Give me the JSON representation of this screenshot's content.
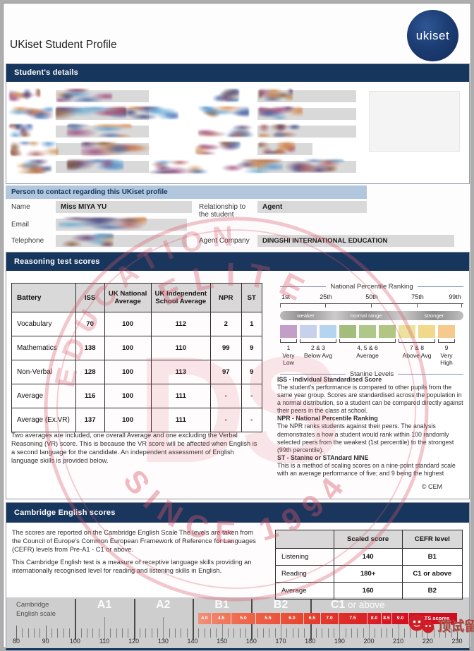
{
  "page": {
    "title": "UKiset Student Profile",
    "logo_text": "ukiset"
  },
  "student_details": {
    "header": "Student's details"
  },
  "contact": {
    "header": "Person to contact regarding this UKiset profile",
    "name_label": "Name",
    "name_value": "Miss MIYA YU",
    "email_label": "Email",
    "telephone_label": "Telephone",
    "relationship_label": "Relationship to the student",
    "relationship_value": "Agent",
    "agent_company_label": "Agent Company",
    "agent_company_value": "DINGSHI INTERNATIONAL EDUCATION"
  },
  "reasoning": {
    "header": "Reasoning test scores",
    "table": {
      "columns": [
        "Battery",
        "ISS",
        "UK National Average",
        "UK Independent School Average",
        "NPR",
        "ST"
      ],
      "rows": [
        [
          "Vocabulary",
          "70",
          "100",
          "112",
          "2",
          "1"
        ],
        [
          "Mathematics",
          "138",
          "100",
          "110",
          "99",
          "9"
        ],
        [
          "Non-Verbal",
          "128",
          "100",
          "113",
          "97",
          "9"
        ],
        [
          "Average",
          "116",
          "100",
          "111",
          "-",
          "-"
        ],
        [
          "Average (Ex.VR)",
          "137",
          "100",
          "111",
          "-",
          "-"
        ]
      ]
    },
    "averages_note": "Two averages are included, one overall Average and one excluding the Verbal Reasoning (VR) score. This is because the VR score will be affected when English is a second language for the candidate. An independent assessment of English language skills is provided below.",
    "diagram": {
      "title": "National Percentile Ranking",
      "percentile_labels": [
        "1st",
        "25th",
        "50th",
        "75th",
        "99th"
      ],
      "band_words": [
        "weaker",
        "normal range",
        "stronger"
      ],
      "stanine_colors": [
        "#c39fca",
        "#c7d3ed",
        "#b4d6f0",
        "#a3bf7d",
        "#afc98b",
        "#b0c883",
        "#ece49e",
        "#f0d98b",
        "#f6c98c"
      ],
      "groups": [
        {
          "num": "1",
          "label": "Very Low"
        },
        {
          "num": "2 & 3",
          "label": "Below Avg"
        },
        {
          "num": "4, 5 & 6",
          "label": "Average"
        },
        {
          "num": "7 & 8",
          "label": "Above Avg"
        },
        {
          "num": "9",
          "label": "Very High"
        }
      ],
      "footer": "Stanine Levels"
    },
    "definitions": [
      {
        "term": "ISS - Individual Standardised Score",
        "text": "The student's performance is compared to other pupils from the same year group. Scores are standardised across the population in a normal distribution, so a student can be compared directly against their peers in the class at school."
      },
      {
        "term": "NPR - National Percentile Ranking",
        "text": "The NPR ranks students against their peers. The analysis demonstrates a how a student would rank within 100 randomly selected peers from the weakest (1st percentile) to the strongest (99th percentile)."
      },
      {
        "term": "ST - Stanine or STAndard NINE",
        "text": "This is a method of scaling scores on a nine-point standard scale with an average performance of five; and 9 being the highest"
      }
    ],
    "copyright": "© CEM"
  },
  "cambridge": {
    "header": "Cambridge English scores",
    "para1": "The scores are reported on the Cambridge English Scale The levels are taken from the Council of Europe's Common European Framework of Reference for Languages (CEFR) levels from Pre-A1 - C1 or above.",
    "para2": "This Cambridge English test is a measure of receptive language skills providing an internationally recognised level for reading and listening skills in English.",
    "table": {
      "columns": [
        "",
        "Scaled score",
        "CEFR level"
      ],
      "rows": [
        [
          "Listening",
          "140",
          "B1"
        ],
        [
          "Reading",
          "180+",
          "C1 or above"
        ],
        [
          "Average",
          "160",
          "B2"
        ]
      ]
    },
    "scale": {
      "caption_line1": "Cambridge",
      "caption_line2": "English scale",
      "levels": [
        {
          "label": "A1",
          "center_value": 110
        },
        {
          "label": "A2",
          "center_value": 130
        },
        {
          "label": "B1",
          "center_value": 150
        },
        {
          "label": "B2",
          "center_value": 170
        }
      ],
      "c1_bold": "C1",
      "c1_rest": " or above",
      "numbers": [
        80,
        90,
        100,
        110,
        120,
        130,
        140,
        150,
        160,
        170,
        180,
        190,
        200,
        210,
        220,
        230
      ],
      "boundaries": [
        100,
        120,
        140,
        160,
        180
      ],
      "ielts_scores": [
        "4.0",
        "4.5",
        "5.0",
        "5.5",
        "6.0",
        "6.5",
        "7.0",
        "7.5",
        "8.0",
        "8.5",
        "9.0"
      ],
      "ielts_label": "IELTS scores"
    }
  },
  "watermark": {
    "top_text": "ELITE",
    "ring_text": "EDUCATION",
    "bottom_text": "SINCE 1994",
    "center_text": "DS"
  },
  "footer_logo": {
    "text": "顶试留学"
  }
}
